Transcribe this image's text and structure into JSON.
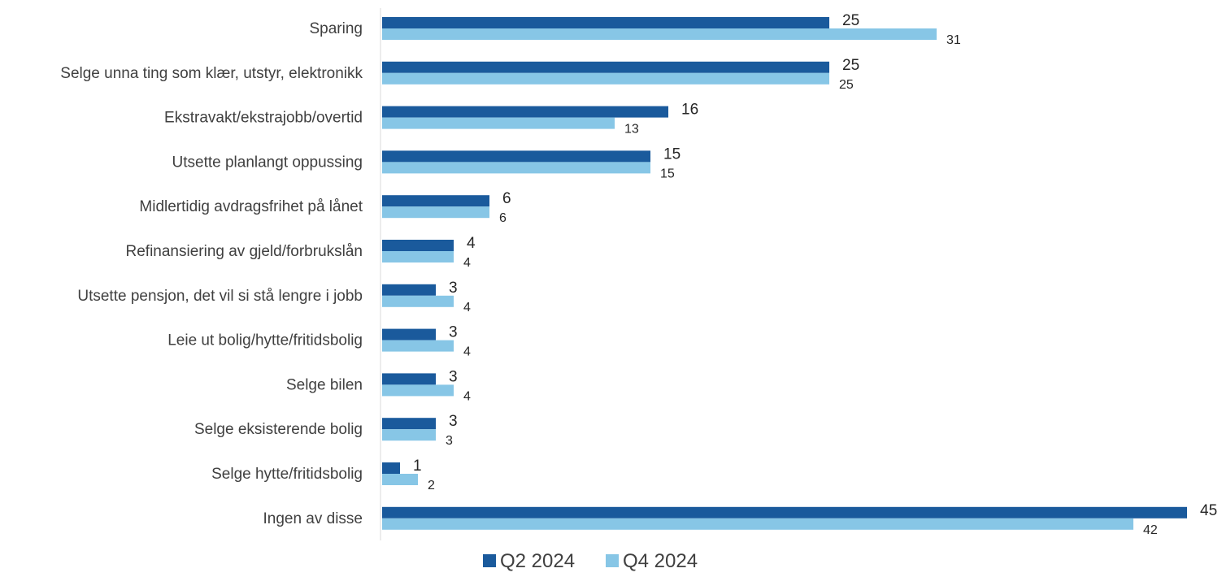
{
  "chart_data": {
    "type": "bar",
    "orientation": "horizontal",
    "title": "",
    "xlabel": "",
    "ylabel": "",
    "grid": false,
    "legend_position": "bottom",
    "categories": [
      "Sparing",
      "Selge unna ting som klær, utstyr, elektronikk",
      "Ekstravakt/ekstrajobb/overtid",
      "Utsette planlangt oppussing",
      "Midlertidig avdragsfrihet på lånet",
      "Refinansiering av gjeld/forbrukslån",
      "Utsette pensjon, det vil si stå lengre i jobb",
      "Leie ut bolig/hytte/fritidsbolig",
      "Selge bilen",
      "Selge eksisterende bolig",
      "Selge hytte/fritidsbolig",
      "Ingen av disse"
    ],
    "series": [
      {
        "name": "Q2 2024",
        "color": "#1a5a9c",
        "values": [
          25,
          25,
          16,
          15,
          6,
          4,
          3,
          3,
          3,
          3,
          1,
          45
        ]
      },
      {
        "name": "Q4 2024",
        "color": "#87c6e6",
        "values": [
          31,
          25,
          13,
          15,
          6,
          4,
          4,
          4,
          4,
          3,
          2,
          42
        ]
      }
    ],
    "xlim": [
      0,
      45
    ]
  }
}
